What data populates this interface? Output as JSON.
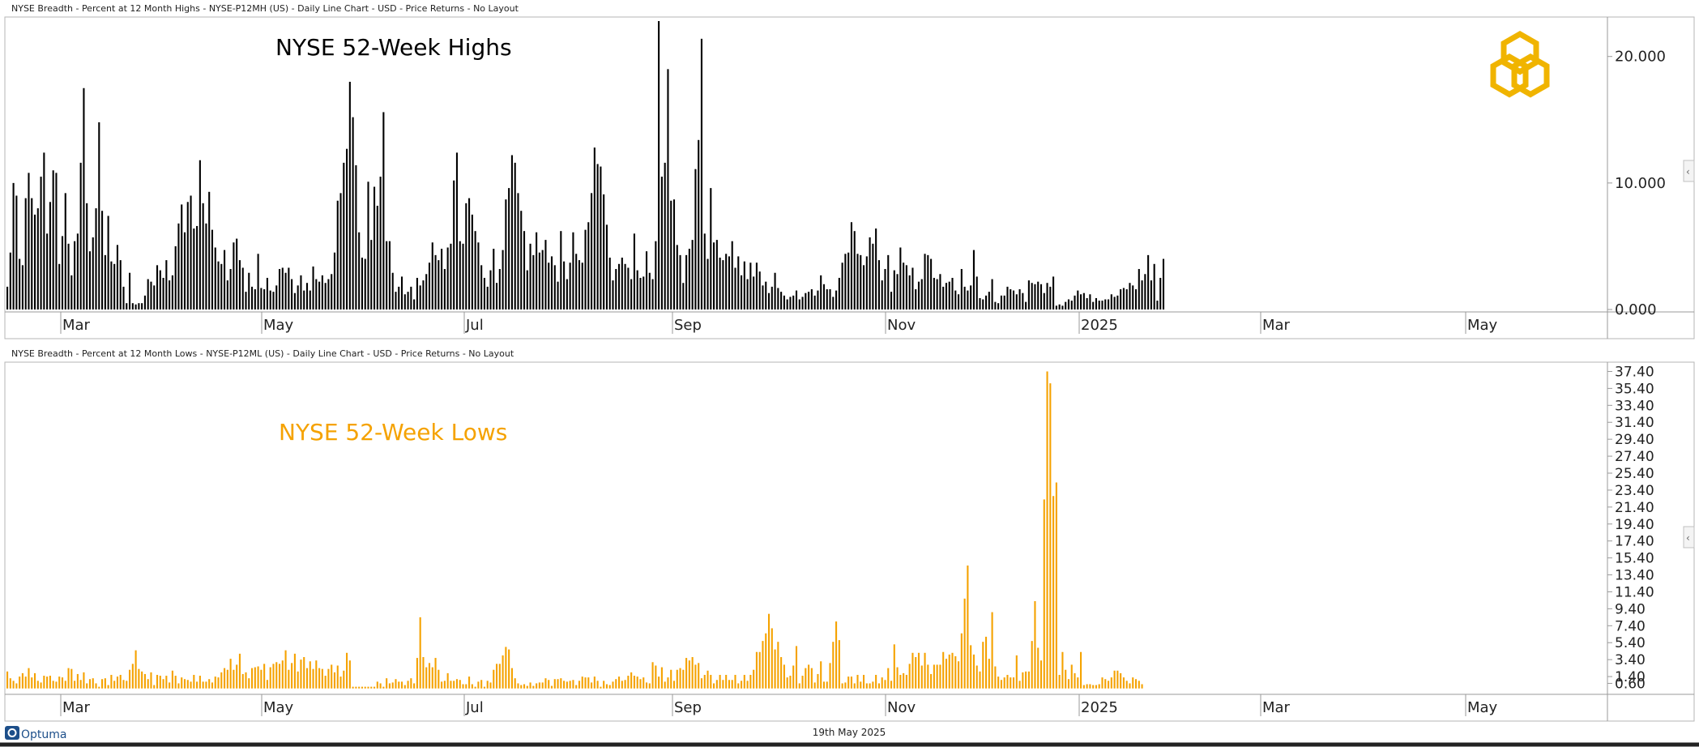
{
  "top_panel": {
    "header": "NYSE Breadth - Percent at 12 Month Highs - NYSE-P12MH (US) - Daily Line Chart - USD - Price Returns - No Layout",
    "overlay_title": "NYSE 52-Week Highs",
    "y_ticks": [
      "20.000",
      "10.000",
      "0.000"
    ],
    "month_labels": [
      "Mar",
      "May",
      "Jul",
      "Sep",
      "Nov",
      "2025",
      "Mar",
      "May"
    ]
  },
  "bottom_panel": {
    "header": "NYSE Breadth - Percent at 12 Month Lows - NYSE-P12ML (US) - Daily Line Chart - USD - Price Returns - No Layout",
    "overlay_title": "NYSE 52-Week Lows",
    "y_ticks": [
      "37.40",
      "35.40",
      "33.40",
      "31.40",
      "29.40",
      "27.40",
      "25.40",
      "23.40",
      "21.40",
      "19.40",
      "17.40",
      "15.40",
      "13.40",
      "11.40",
      "9.40",
      "7.40",
      "5.40",
      "3.40",
      "1.40",
      "0.60"
    ],
    "month_labels": [
      "Mar",
      "May",
      "Jul",
      "Sep",
      "Nov",
      "2025",
      "Mar",
      "May"
    ]
  },
  "footer": {
    "brand": "Optuma",
    "date": "19th May 2025"
  },
  "colors": {
    "highs": "#000000",
    "lows": "#f5a200",
    "logo": "#f0b400",
    "axis": "#9a9a9a",
    "lows_title": "#f5a200"
  },
  "chart_data": [
    {
      "type": "bar",
      "title": "NYSE 52-Week Highs",
      "x_start_month": "Feb 2024",
      "ylim": [
        0,
        22.8
      ],
      "series": [
        {
          "values": [
            1.8,
            4.5,
            10,
            9,
            4,
            3.5,
            8.8,
            10.8,
            8.8,
            7.5,
            8,
            10.5,
            12.4,
            6,
            8.5,
            11,
            10.8,
            3.6,
            5.8,
            9.2,
            5.2,
            2.7,
            5.4,
            6,
            11.6,
            17.5,
            8.4,
            4.6,
            5.7,
            8,
            14.8,
            7.8,
            4.3,
            7.4,
            3.8,
            3.6,
            5.1,
            3.9,
            1.8,
            0.5,
            2.9,
            0.5,
            0.4,
            0.5,
            0.5,
            1.1,
            2.4,
            2.2,
            1.9,
            3.5,
            3.1,
            2.5,
            3.9,
            2.3,
            2.7,
            5,
            6.8,
            8.3,
            6.1,
            8.5,
            9,
            6.4,
            6.6,
            11.8,
            8.4,
            6.8,
            9.3,
            6.3,
            4.9,
            3.8,
            3.6,
            4.7,
            2.3,
            3.2,
            5.3,
            5.6,
            3.9,
            3.3,
            1.4,
            2.9,
            1.8,
            1.6,
            4.4,
            1.7,
            1.6,
            2.5,
            1.5,
            1.4,
            1.9,
            3.2,
            3.3,
            2.9,
            3.3,
            2.4,
            1.3,
            1.9,
            2.7,
            1.5,
            2.1,
            1.5,
            3.4,
            2.4,
            2.2,
            2.7,
            2.1,
            2.4,
            2.8,
            4.5,
            8.6,
            9.2,
            11.6,
            12.7,
            18,
            15.2,
            11.4,
            6.1,
            4.1,
            4,
            10.1,
            5.5,
            9.7,
            8.2,
            10.5,
            15.6,
            5.4,
            5.4,
            2.9,
            1.4,
            1.8,
            2.6,
            1.2,
            1.4,
            1.8,
            0.8,
            2.5,
            1.9,
            2.3,
            2.8,
            3.7,
            5.3,
            4.3,
            3.9,
            4.8,
            3.2,
            4.9,
            5.2,
            10.2,
            12.4,
            5.4,
            5.2,
            8.4,
            8.8,
            7.5,
            6.2,
            5.3,
            3.5,
            2.5,
            1.8,
            3.1,
            4.8,
            2.1,
            3.2,
            4.7,
            8.7,
            9.6,
            12.2,
            11.6,
            9.2,
            7.8,
            6.2,
            3.1,
            5.2,
            4.3,
            6.1,
            4.5,
            4.7,
            5.5,
            3.7,
            4.2,
            3.5,
            2.2,
            6.2,
            3.8,
            2.4,
            3.7,
            6.1,
            4.4,
            3.9,
            3.7,
            6.3,
            6.9,
            9.2,
            12.8,
            11.5,
            11.3,
            9.1,
            6.7,
            4.1,
            2.3,
            3.2,
            3.6,
            4.1,
            3.6,
            3.3,
            2.4,
            6,
            3.1,
            2.5,
            2.6,
            4.6,
            2.9,
            2.4,
            5.4,
            22.8,
            10.5,
            11.6,
            19,
            8.6,
            8.7,
            5.1,
            4.3,
            2.1,
            4.3,
            4.8,
            5.5,
            11.1,
            13.4,
            21.4,
            6,
            4,
            9.6,
            5.3,
            5.5,
            4.1,
            3.9,
            4.4,
            4.2,
            5.4,
            3.3,
            4.2,
            2.7,
            3.8,
            2.4,
            3.7,
            2.6,
            3.7,
            3,
            1.9,
            2.2,
            1.3,
            1.8,
            2.9,
            1.7,
            1.4,
            1.1,
            0.8,
            1,
            1.1,
            1.5,
            0.8,
            1,
            1.3,
            1.4,
            1.6,
            1.1,
            1.5,
            2.7,
            2,
            1.6,
            1.6,
            1,
            1.5,
            2.5,
            3.7,
            4.4,
            4.5,
            6.9,
            6.2,
            4.4,
            4.3,
            3.5,
            4.2,
            5.7,
            5.2,
            6.4,
            3.9,
            2.3,
            3.2,
            4.3,
            1.4,
            3.1,
            2.8,
            4.9,
            3.7,
            3.5,
            2.7,
            3.3,
            1.6,
            2.2,
            2.4,
            4.4,
            4.3,
            4,
            2.5,
            2.4,
            2.8,
            1.8,
            2.1,
            2.2,
            2.5,
            1.5,
            1.2,
            3.2,
            1.8,
            1.5,
            1.9,
            4.7,
            2.6,
            0.9,
            0.8,
            1.1,
            1.4,
            2.4,
            0.6,
            0.5,
            1.1,
            1.1,
            1.8,
            1.6,
            1.5,
            1.2,
            1.6,
            1.3,
            0.6,
            2.3,
            2.1,
            2,
            2.2,
            2,
            1.3,
            2.1,
            1.8,
            2.6,
            0.3,
            0.4,
            0.3,
            0.6,
            0.8,
            0.7,
            1.1,
            1.5,
            1.2,
            1.3,
            0.9,
            1.2,
            0.6,
            0.9,
            0.7,
            0.7,
            0.8,
            0.8,
            1.2,
            1,
            1.1,
            1.6,
            1.7,
            1.6,
            2.1,
            1.9,
            1.6,
            3.2,
            2.3,
            2.8,
            4.3,
            2.3,
            3.6,
            0.7,
            2.5,
            4
          ],
          "color": "#000000"
        }
      ]
    },
    {
      "type": "bar",
      "title": "NYSE 52-Week Lows",
      "x_start_month": "Feb 2024",
      "ylim": [
        -0.6,
        38.4
      ],
      "series": [
        {
          "values": [
            2,
            1.2,
            0.9,
            0.6,
            1.4,
            1.8,
            1.4,
            2.4,
            1.3,
            1.8,
            0.9,
            0.7,
            1.5,
            1.4,
            1.5,
            0.9,
            0.8,
            1.4,
            1.3,
            0.9,
            2.4,
            2.3,
            0.9,
            1.7,
            1,
            1.9,
            0.6,
            1.1,
            1.2,
            0.6,
            0.2,
            1.1,
            1.2,
            0.4,
            1.6,
            0.9,
            1.4,
            1.6,
            1,
            0.9,
            2.2,
            2.9,
            4.5,
            2.3,
            2,
            1.7,
            1.1,
            1.9,
            0.4,
            1.6,
            1.5,
            1.1,
            1.5,
            0.7,
            2.1,
            1.5,
            0.6,
            1.3,
            1.1,
            1,
            0.8,
            1.6,
            0.8,
            1.5,
            0.8,
            0.8,
            1.1,
            0.7,
            1.4,
            1.3,
            1.9,
            2.4,
            2.2,
            3.5,
            2.2,
            2.8,
            4.1,
            1.7,
            1.9,
            1.2,
            2.4,
            2.5,
            2.6,
            2.2,
            2.9,
            1,
            2.5,
            2.9,
            3.1,
            2.9,
            3.3,
            4.5,
            2.2,
            3,
            4.1,
            2,
            3.4,
            3.7,
            2.4,
            3.2,
            2.3,
            3.3,
            2.4,
            2.3,
            1.5,
            2.3,
            2.8,
            1.9,
            2.7,
            1.4,
            2.1,
            4.2,
            3.3,
            0.2,
            0.2,
            0.2,
            0.2,
            0.2,
            0.2,
            0.2,
            0.2,
            0.8,
            0.6,
            0.2,
            1.2,
            0.6,
            0.7,
            1.1,
            0.8,
            0.8,
            0.4,
            0.9,
            1.2,
            0.6,
            3.6,
            8.4,
            3.7,
            2.5,
            3,
            2.5,
            3.6,
            2.2,
            0.8,
            0.9,
            1.8,
            0.9,
            0.9,
            1.1,
            1,
            0.5,
            0.5,
            1.4,
            0.5,
            0.2,
            0.8,
            1,
            0.2,
            0.9,
            0.7,
            2.2,
            2.9,
            2.9,
            3.9,
            4.9,
            4.6,
            2.4,
            1.2,
            0.6,
            0.4,
            0.5,
            0.3,
            0.7,
            0.3,
            0.6,
            0.7,
            0.7,
            1.2,
            1,
            0.3,
            1.1,
            1.1,
            1.2,
            0.9,
            0.8,
            0.9,
            1,
            0.4,
            0.9,
            1.4,
            1.3,
            1.3,
            0.7,
            1.4,
            0.9,
            0.2,
            0.9,
            0.5,
            0.4,
            0.8,
            1.1,
            1.4,
            0.9,
            1,
            1.5,
            1.9,
            1.5,
            1.4,
            1.1,
            1.3,
            0.7,
            0.6,
            3.1,
            2.7,
            1.4,
            2.5,
            0.8,
            1.3,
            2.2,
            0.9,
            2.2,
            2.4,
            2.2,
            3.6,
            3.3,
            3.7,
            2.8,
            3,
            1.2,
            1.6,
            2.1,
            1.6,
            0.6,
            1,
            1.6,
            1,
            1.6,
            1,
            1,
            1.6,
            0.6,
            0.9,
            1.6,
            0.9,
            1.6,
            2.2,
            4.3,
            4.3,
            5.6,
            6.5,
            8.8,
            7.1,
            4.6,
            5.5,
            3.7,
            2.8,
            1.3,
            1.5,
            2.7,
            5,
            0.6,
            1.5,
            2.4,
            2.8,
            2.4,
            0.7,
            1.7,
            3.2,
            0.8,
            0.8,
            3,
            5.5,
            7.9,
            5.7,
            0.6,
            0.7,
            1.4,
            1.4,
            0.6,
            1.6,
            0.8,
            1.6,
            0.6,
            0.6,
            0.8,
            1.6,
            0.6,
            1.3,
            1,
            2.4,
            0.9,
            5.2,
            2.5,
            1.6,
            1.8,
            1.6,
            2.9,
            4.2,
            3.7,
            4.2,
            2.7,
            4.2,
            2.8,
            1.7,
            2.8,
            2.8,
            2.8,
            4.3,
            3.5,
            4,
            4.2,
            3.8,
            3.2,
            6.5,
            10.6,
            14.5,
            5.1,
            4,
            2.7,
            2,
            5.5,
            6.1,
            3.5,
            9,
            2.6,
            1.4,
            1,
            1.3,
            1.6,
            1.3,
            1.3,
            3.9,
            0.9,
            1.9,
            2,
            2,
            5.6,
            10.3,
            4.8,
            3.3,
            22.3,
            37.4,
            36,
            22.7,
            24.3,
            1.6,
            4.3,
            2.2,
            1.1,
            2.8,
            1.8,
            1.3,
            4.3,
            0.4,
            0.5,
            0.5,
            0.4,
            0.4,
            0.5,
            1.3,
            1.1,
            0.9,
            1.3,
            2.1,
            2.1,
            1.8,
            1.3,
            0.9,
            0.6,
            1.3,
            1.1,
            0.9,
            0.5
          ],
          "color": "#f5a200"
        }
      ]
    }
  ]
}
